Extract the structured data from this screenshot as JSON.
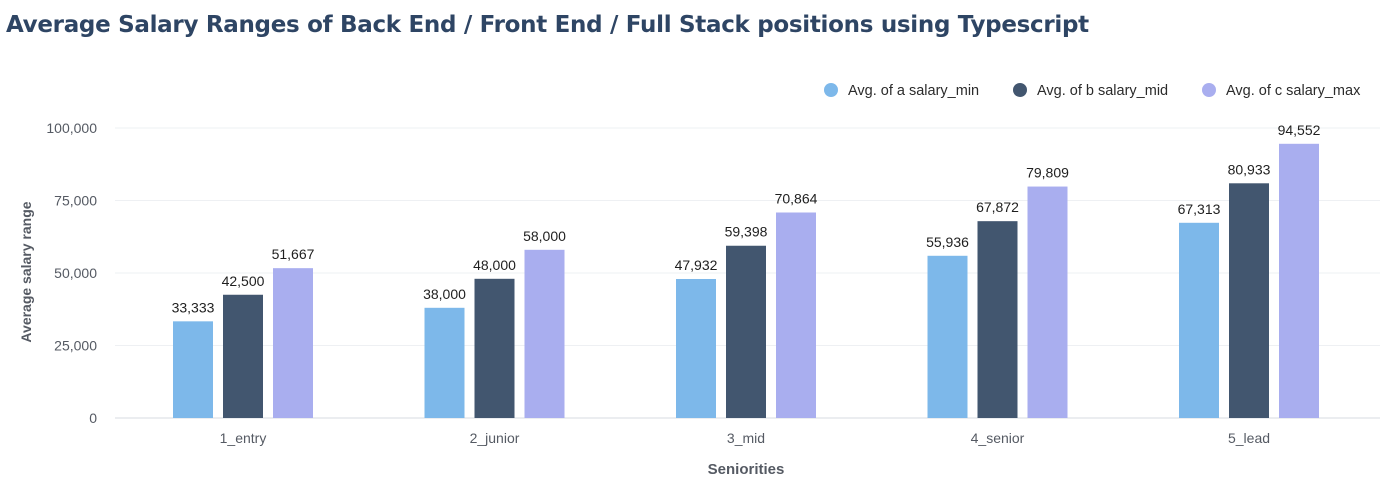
{
  "title": "Average Salary Ranges of Back End / Front End / Full Stack positions using Typescript",
  "chart_data": {
    "type": "bar",
    "title": "Average Salary Ranges of Back End / Front End / Full Stack positions using Typescript",
    "xlabel": "Seniorities",
    "ylabel": "Average salary range",
    "categories": [
      "1_entry",
      "2_junior",
      "3_mid",
      "4_senior",
      "5_lead"
    ],
    "series": [
      {
        "name": "Avg. of a salary_min",
        "color": "#7db8ea",
        "values": [
          33333,
          38000,
          47932,
          55936,
          67313
        ],
        "labels": [
          "33,333",
          "38,000",
          "47,932",
          "55,936",
          "67,313"
        ]
      },
      {
        "name": "Avg. of b salary_mid",
        "color": "#42566f",
        "values": [
          42500,
          48000,
          59398,
          67872,
          80933
        ],
        "labels": [
          "42,500",
          "48,000",
          "59,398",
          "67,872",
          "80,933"
        ]
      },
      {
        "name": "Avg. of c salary_max",
        "color": "#a9aeef",
        "values": [
          51667,
          58000,
          70864,
          79809,
          94552
        ],
        "labels": [
          "51,667",
          "58,000",
          "70,864",
          "79,809",
          "94,552"
        ]
      }
    ],
    "yticks": [
      0,
      25000,
      50000,
      75000,
      100000
    ],
    "ytick_labels": [
      "0",
      "25,000",
      "50,000",
      "75,000",
      "100,000"
    ],
    "ylim": [
      0,
      100000
    ],
    "grid": true,
    "legend_position": "top-right"
  }
}
